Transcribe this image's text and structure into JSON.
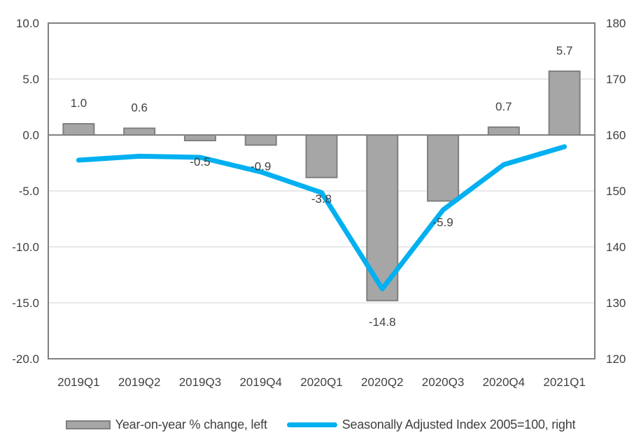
{
  "chart_data": {
    "type": "combo-bar-line",
    "title": "",
    "categories": [
      "2019Q1",
      "2019Q2",
      "2019Q3",
      "2019Q4",
      "2020Q1",
      "2020Q2",
      "2020Q3",
      "2020Q4",
      "2021Q1"
    ],
    "series": [
      {
        "name": "Year-on-year % change, left",
        "type": "bar",
        "axis": "left",
        "values": [
          1.0,
          0.6,
          -0.5,
          -0.9,
          -3.8,
          -14.8,
          -5.9,
          0.7,
          5.7
        ],
        "labels": [
          "1.0",
          "0.6",
          "-0.5",
          "-0.9",
          "-3.8",
          "-14.8",
          "-5.9",
          "0.7",
          "5.7"
        ],
        "fill": "#a6a6a6",
        "stroke": "#7f7f7f"
      },
      {
        "name": "Seasonally Adjusted Index 2005=100, right",
        "type": "line",
        "axis": "right",
        "values": [
          155.5,
          156.2,
          156.0,
          153.4,
          149.7,
          132.5,
          146.6,
          154.7,
          157.9
        ],
        "color": "#00b0f0"
      }
    ],
    "left_axis": {
      "min": -20,
      "max": 10,
      "ticks": [
        10,
        5,
        0,
        -5,
        -10,
        -15,
        -20
      ],
      "tick_labels": [
        "10.0",
        "5.0",
        "0.0",
        "-5.0",
        "-10.0",
        "-15.0",
        "-20.0"
      ]
    },
    "right_axis": {
      "min": 120,
      "max": 180,
      "ticks": [
        180,
        170,
        160,
        150,
        140,
        130,
        120
      ],
      "tick_labels": [
        "180",
        "170",
        "160",
        "150",
        "140",
        "130",
        "120"
      ]
    },
    "grid": true,
    "legend_position": "bottom",
    "colors": {
      "text": "#404040",
      "gridline": "#d9d9d9",
      "plot_border": "#808080",
      "zero_line": "#808080",
      "bar_fill": "#a6a6a6",
      "bar_stroke": "#7f7f7f",
      "line": "#00b0f0",
      "background": "#ffffff"
    }
  }
}
